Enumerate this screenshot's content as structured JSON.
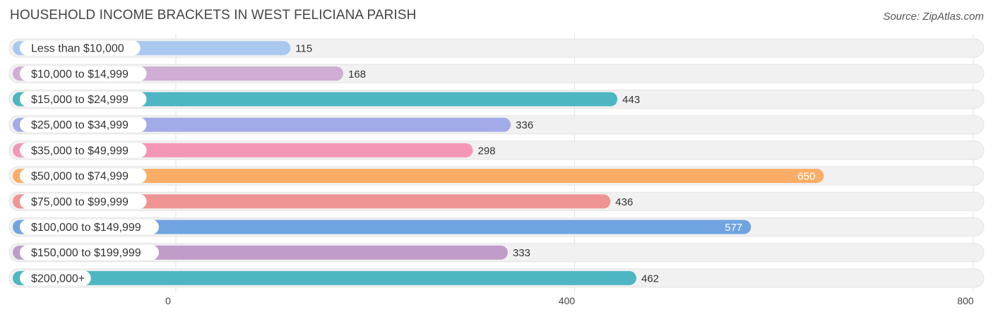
{
  "header": {
    "title": "HOUSEHOLD INCOME BRACKETS IN WEST FELICIANA PARISH",
    "source": "Source: ZipAtlas.com"
  },
  "chart_data": {
    "type": "bar",
    "orientation": "horizontal",
    "title": "HOUSEHOLD INCOME BRACKETS IN WEST FELICIANA PARISH",
    "categories": [
      "Less than $10,000",
      "$10,000 to $14,999",
      "$15,000 to $24,999",
      "$25,000 to $34,999",
      "$35,000 to $49,999",
      "$50,000 to $74,999",
      "$75,000 to $99,999",
      "$100,000 to $149,999",
      "$150,000 to $199,999",
      "$200,000+"
    ],
    "values": [
      115,
      168,
      443,
      336,
      298,
      650,
      436,
      577,
      333,
      462
    ],
    "value_labels": [
      "115",
      "168",
      "443",
      "336",
      "298",
      "650",
      "436",
      "577",
      "333",
      "462"
    ],
    "colors": [
      "#a9c8ef",
      "#cfadd4",
      "#4db6c2",
      "#a3aae8",
      "#f497b6",
      "#fbad65",
      "#ef9492",
      "#6fa4e0",
      "#c09cc9",
      "#4db6c2"
    ],
    "xlim": [
      0,
      800
    ],
    "ticks": [
      0,
      400,
      800
    ],
    "tick_labels": [
      "0",
      "400",
      "800"
    ],
    "xlabel": "",
    "ylabel": "",
    "grid": true,
    "legend": "none"
  }
}
